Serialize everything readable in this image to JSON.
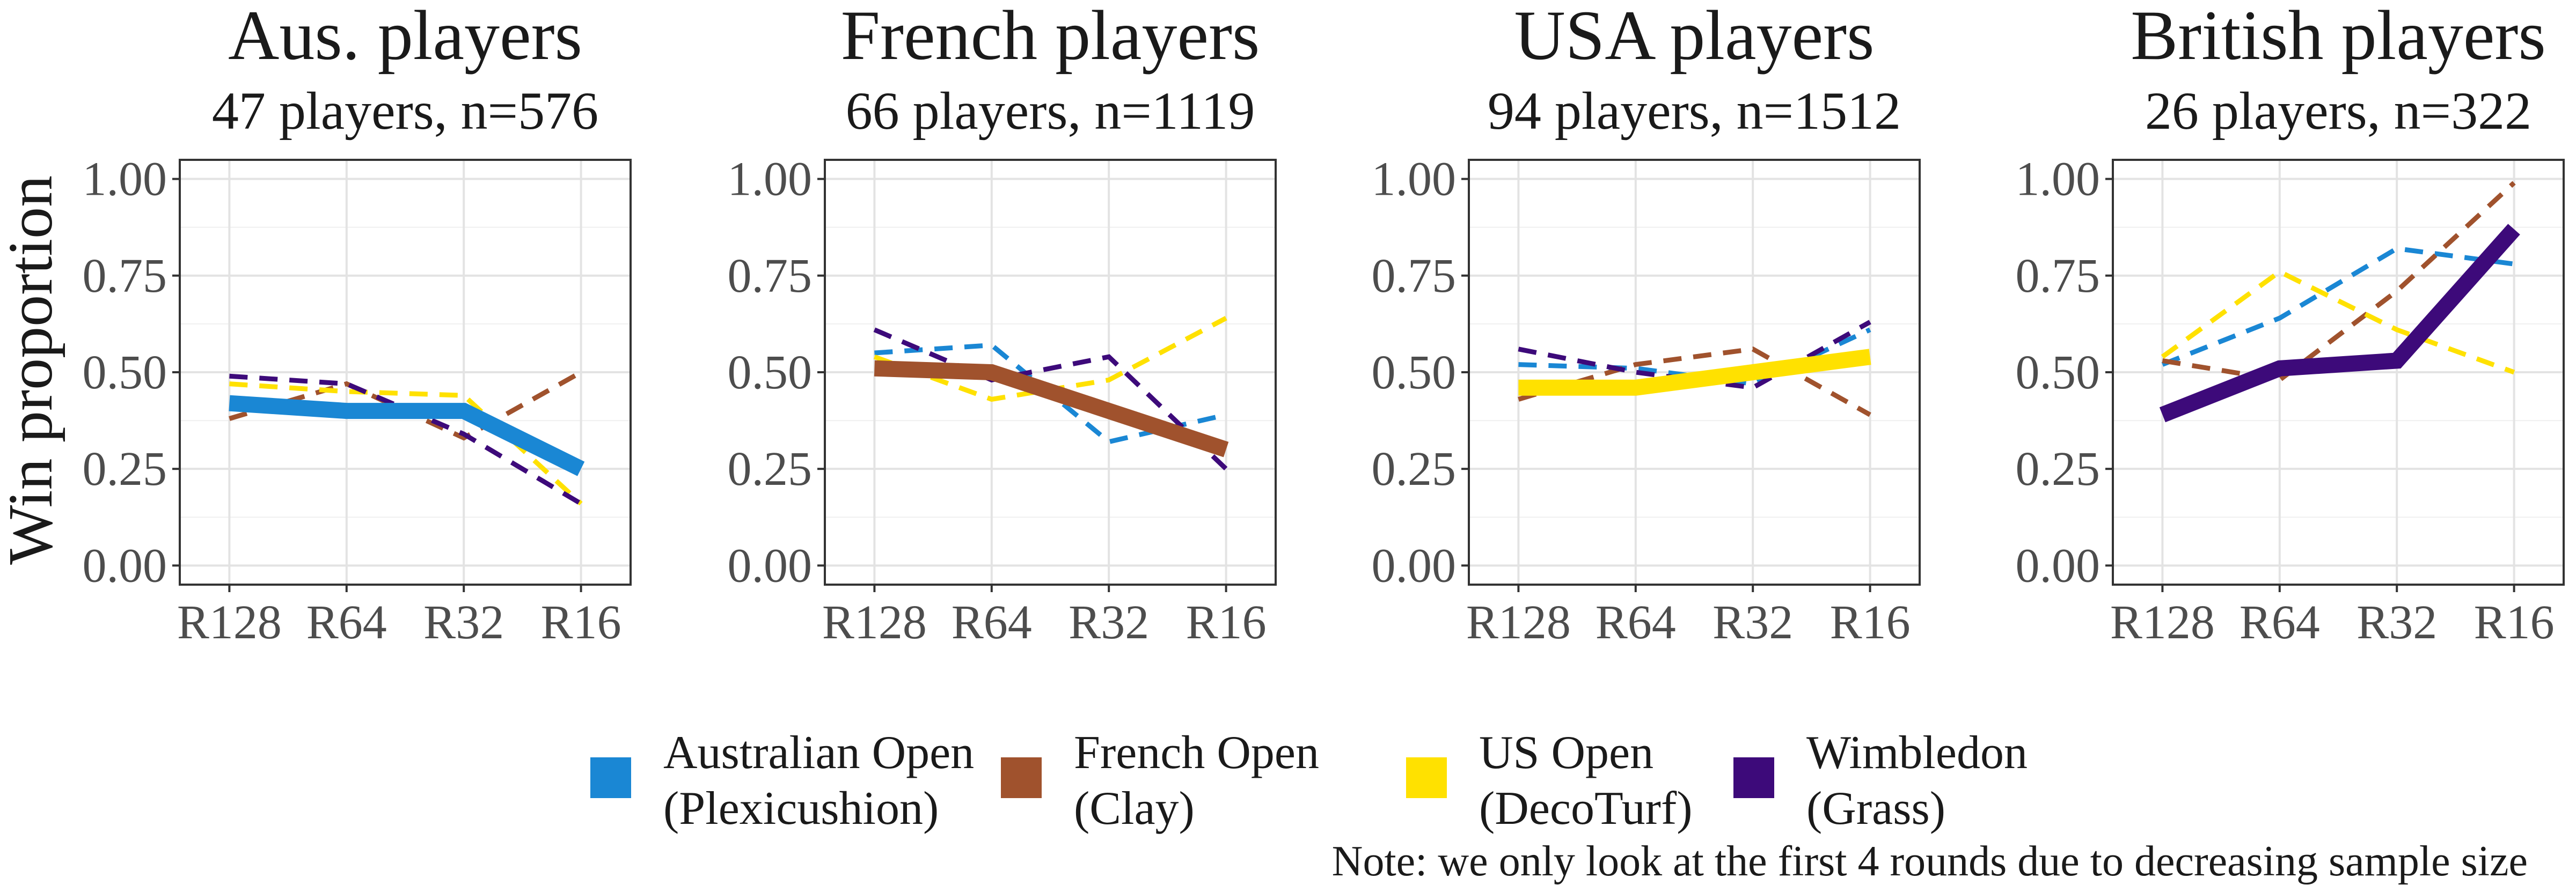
{
  "chart_data": {
    "type": "line",
    "ylabel": "Win proportion",
    "categories": [
      "R128",
      "R64",
      "R32",
      "R16"
    ],
    "ylim": [
      0,
      1
    ],
    "yticks": [
      "0.00",
      "0.25",
      "0.50",
      "0.75",
      "1.00"
    ],
    "grid": true,
    "legend_position": "bottom",
    "legend": [
      {
        "key": "ao",
        "line1": "Australian Open",
        "line2": "(Plexicushion)",
        "color": "#1a87d4"
      },
      {
        "key": "fo",
        "line1": "French Open",
        "line2": "(Clay)",
        "color": "#a0522d"
      },
      {
        "key": "uso",
        "line1": "US Open",
        "line2": "(DecoTurf)",
        "color": "#ffe100"
      },
      {
        "key": "wim",
        "line1": "Wimbledon",
        "line2": "(Grass)",
        "color": "#3d0a7a"
      }
    ],
    "note": "Note: we only look at the first 4 rounds due to decreasing sample size",
    "panels": [
      {
        "title": "Aus. players",
        "subtitle": "47 players, n=576",
        "home": "ao",
        "series": {
          "ao": [
            0.42,
            0.4,
            0.4,
            0.25
          ],
          "fo": [
            0.38,
            0.47,
            0.33,
            0.5
          ],
          "uso": [
            0.47,
            0.45,
            0.44,
            0.16
          ],
          "wim": [
            0.49,
            0.47,
            0.34,
            0.16
          ]
        }
      },
      {
        "title": "French players",
        "subtitle": "66 players, n=1119",
        "home": "fo",
        "series": {
          "ao": [
            0.55,
            0.57,
            0.32,
            0.39
          ],
          "fo": [
            0.51,
            0.5,
            0.4,
            0.3
          ],
          "uso": [
            0.54,
            0.43,
            0.48,
            0.64
          ],
          "wim": [
            0.61,
            0.48,
            0.54,
            0.25
          ]
        }
      },
      {
        "title": "USA players",
        "subtitle": "94 players, n=1512",
        "home": "uso",
        "series": {
          "ao": [
            0.52,
            0.51,
            0.47,
            0.61
          ],
          "fo": [
            0.43,
            0.52,
            0.56,
            0.39
          ],
          "uso": [
            0.46,
            0.46,
            0.5,
            0.54
          ],
          "wim": [
            0.56,
            0.5,
            0.46,
            0.63
          ]
        }
      },
      {
        "title": "British players",
        "subtitle": "26 players, n=322",
        "home": "wim",
        "series": {
          "ao": [
            0.52,
            0.64,
            0.82,
            0.78
          ],
          "fo": [
            0.53,
            0.48,
            0.71,
            0.99
          ],
          "uso": [
            0.54,
            0.76,
            0.61,
            0.5
          ],
          "wim": [
            0.39,
            0.51,
            0.53,
            0.87
          ]
        }
      }
    ]
  }
}
